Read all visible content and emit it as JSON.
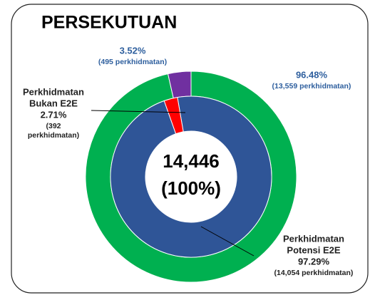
{
  "chart_data": {
    "type": "nested-donut",
    "title": "PERSEKUTUAN",
    "center_label": [
      "14,446",
      "(100%)"
    ],
    "rings": [
      {
        "role": "outer",
        "names": [
          null,
          null
        ],
        "values": [
          96.48,
          3.52
        ],
        "value_labels": [
          "96.48%",
          "3.52%"
        ],
        "count_labels": [
          [
            "(13,559 perkhidmatan)"
          ],
          [
            "(495 perkhidmatan)"
          ]
        ],
        "colors": [
          "#00b050",
          "#7030a0"
        ]
      },
      {
        "role": "inner",
        "names": [
          [
            "Perkhidmatan",
            "Potensi E2E"
          ],
          [
            "Perkhidmatan",
            "Bukan E2E"
          ]
        ],
        "values": [
          97.29,
          2.71
        ],
        "value_labels": [
          "97.29%",
          "2.71%"
        ],
        "count_labels": [
          [
            "(14,054 perkhidmatan)"
          ],
          [
            "(392",
            "perkhidmatan)"
          ]
        ],
        "colors": [
          "#2f5597",
          "#ff0000"
        ]
      }
    ]
  }
}
